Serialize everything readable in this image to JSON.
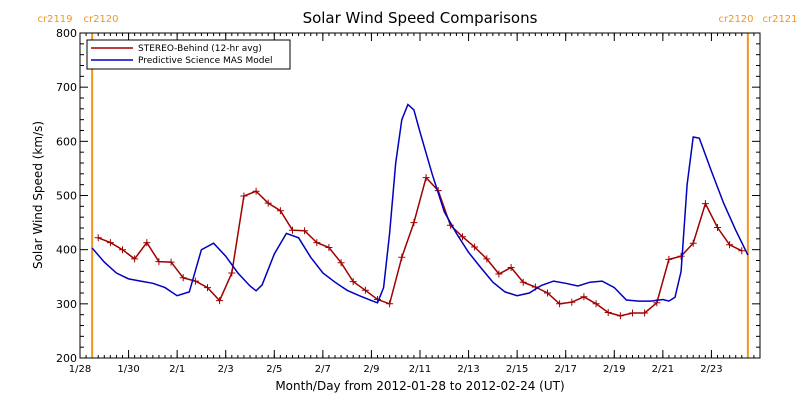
{
  "chart_data": {
    "type": "line",
    "title": "Solar Wind Speed Comparisons",
    "xlabel": "Month/Day from 2012-01-28 to 2012-02-24 (UT)",
    "ylabel": "Solar Wind Speed (km/s)",
    "xlim": [
      "2012-01-28T00:00",
      "2012-02-25T00:00"
    ],
    "ylim": [
      200,
      800
    ],
    "y_ticks": [
      200,
      300,
      400,
      500,
      600,
      700,
      800
    ],
    "x_ticks": [
      {
        "date": "2012-01-28",
        "label": "1/28"
      },
      {
        "date": "2012-01-30",
        "label": "1/30"
      },
      {
        "date": "2012-02-01",
        "label": "2/1"
      },
      {
        "date": "2012-02-03",
        "label": "2/3"
      },
      {
        "date": "2012-02-05",
        "label": "2/5"
      },
      {
        "date": "2012-02-07",
        "label": "2/7"
      },
      {
        "date": "2012-02-09",
        "label": "2/9"
      },
      {
        "date": "2012-02-11",
        "label": "2/11"
      },
      {
        "date": "2012-02-13",
        "label": "2/13"
      },
      {
        "date": "2012-02-15",
        "label": "2/15"
      },
      {
        "date": "2012-02-17",
        "label": "2/17"
      },
      {
        "date": "2012-02-19",
        "label": "2/19"
      },
      {
        "date": "2012-02-21",
        "label": "2/21"
      },
      {
        "date": "2012-02-23",
        "label": "2/23"
      }
    ],
    "rotation_markers": [
      {
        "date": "2012-01-28T12:00",
        "labels": [
          "cr2119",
          "cr2120"
        ]
      },
      {
        "date": "2012-02-24T12:00",
        "labels": [
          "cr2120",
          "cr2121"
        ]
      }
    ],
    "legend_position": "top-left",
    "series": [
      {
        "name": "STEREO-Behind (12-hr avg)",
        "color": "#a00000",
        "markers": "plus",
        "x": [
          "2012-01-28T18:00",
          "2012-01-29T06:00",
          "2012-01-29T18:00",
          "2012-01-30T06:00",
          "2012-01-30T18:00",
          "2012-01-31T06:00",
          "2012-01-31T18:00",
          "2012-02-01T06:00",
          "2012-02-01T18:00",
          "2012-02-02T06:00",
          "2012-02-02T18:00",
          "2012-02-03T06:00",
          "2012-02-03T18:00",
          "2012-02-04T06:00",
          "2012-02-04T18:00",
          "2012-02-05T06:00",
          "2012-02-05T18:00",
          "2012-02-06T06:00",
          "2012-02-06T18:00",
          "2012-02-07T06:00",
          "2012-02-07T18:00",
          "2012-02-08T06:00",
          "2012-02-08T18:00",
          "2012-02-09T06:00",
          "2012-02-09T18:00",
          "2012-02-10T06:00",
          "2012-02-10T18:00",
          "2012-02-11T06:00",
          "2012-02-11T18:00",
          "2012-02-12T06:00",
          "2012-02-12T18:00",
          "2012-02-13T06:00",
          "2012-02-13T18:00",
          "2012-02-14T06:00",
          "2012-02-14T18:00",
          "2012-02-15T06:00",
          "2012-02-15T18:00",
          "2012-02-16T06:00",
          "2012-02-16T18:00",
          "2012-02-17T06:00",
          "2012-02-17T18:00",
          "2012-02-18T06:00",
          "2012-02-18T18:00",
          "2012-02-19T06:00",
          "2012-02-19T18:00",
          "2012-02-20T06:00",
          "2012-02-20T18:00",
          "2012-02-21T06:00",
          "2012-02-21T18:00",
          "2012-02-22T06:00",
          "2012-02-22T18:00",
          "2012-02-23T06:00",
          "2012-02-23T18:00",
          "2012-02-24T06:00"
        ],
        "y": [
          422,
          413,
          400,
          383,
          413,
          378,
          377,
          348,
          342,
          330,
          306,
          357,
          499,
          508,
          486,
          472,
          436,
          435,
          413,
          404,
          376,
          341,
          325,
          308,
          300,
          386,
          450,
          533,
          509,
          445,
          424,
          405,
          383,
          355,
          367,
          340,
          331,
          320,
          300,
          303,
          313,
          300,
          284,
          278,
          283,
          283,
          302,
          382,
          388,
          412,
          485,
          441,
          409,
          398
        ]
      },
      {
        "name": "Predictive Science MAS Model",
        "color": "#0000c0",
        "markers": "none",
        "x": [
          "2012-01-28T12:00",
          "2012-01-29T00:00",
          "2012-01-29T12:00",
          "2012-01-30T00:00",
          "2012-01-30T12:00",
          "2012-01-31T00:00",
          "2012-01-31T12:00",
          "2012-02-01T00:00",
          "2012-02-01T12:00",
          "2012-02-02T00:00",
          "2012-02-02T12:00",
          "2012-02-03T00:00",
          "2012-02-03T12:00",
          "2012-02-04T00:00",
          "2012-02-04T06:00",
          "2012-02-04T12:00",
          "2012-02-05T00:00",
          "2012-02-05T12:00",
          "2012-02-06T00:00",
          "2012-02-06T12:00",
          "2012-02-07T00:00",
          "2012-02-07T12:00",
          "2012-02-08T00:00",
          "2012-02-08T12:00",
          "2012-02-09T00:00",
          "2012-02-09T06:00",
          "2012-02-09T12:00",
          "2012-02-09T18:00",
          "2012-02-10T00:00",
          "2012-02-10T06:00",
          "2012-02-10T12:00",
          "2012-02-10T18:00",
          "2012-02-11T00:00",
          "2012-02-11T12:00",
          "2012-02-12T00:00",
          "2012-02-12T12:00",
          "2012-02-13T00:00",
          "2012-02-13T12:00",
          "2012-02-14T00:00",
          "2012-02-14T12:00",
          "2012-02-15T00:00",
          "2012-02-15T12:00",
          "2012-02-16T00:00",
          "2012-02-16T12:00",
          "2012-02-17T00:00",
          "2012-02-17T12:00",
          "2012-02-18T00:00",
          "2012-02-18T12:00",
          "2012-02-19T00:00",
          "2012-02-19T12:00",
          "2012-02-20T00:00",
          "2012-02-20T12:00",
          "2012-02-21T00:00",
          "2012-02-21T06:00",
          "2012-02-21T12:00",
          "2012-02-21T18:00",
          "2012-02-22T00:00",
          "2012-02-22T06:00",
          "2012-02-22T12:00",
          "2012-02-23T00:00",
          "2012-02-23T12:00",
          "2012-02-24T00:00",
          "2012-02-24T12:00"
        ],
        "y": [
          403,
          377,
          357,
          346,
          342,
          338,
          330,
          315,
          322,
          400,
          412,
          388,
          357,
          333,
          324,
          335,
          392,
          430,
          422,
          386,
          357,
          340,
          325,
          315,
          306,
          302,
          330,
          430,
          560,
          640,
          668,
          658,
          617,
          540,
          470,
          430,
          395,
          367,
          340,
          322,
          315,
          320,
          334,
          342,
          338,
          333,
          340,
          342,
          330,
          307,
          305,
          305,
          308,
          305,
          312,
          360,
          520,
          608,
          606,
          545,
          486,
          436,
          390
        ]
      }
    ]
  }
}
